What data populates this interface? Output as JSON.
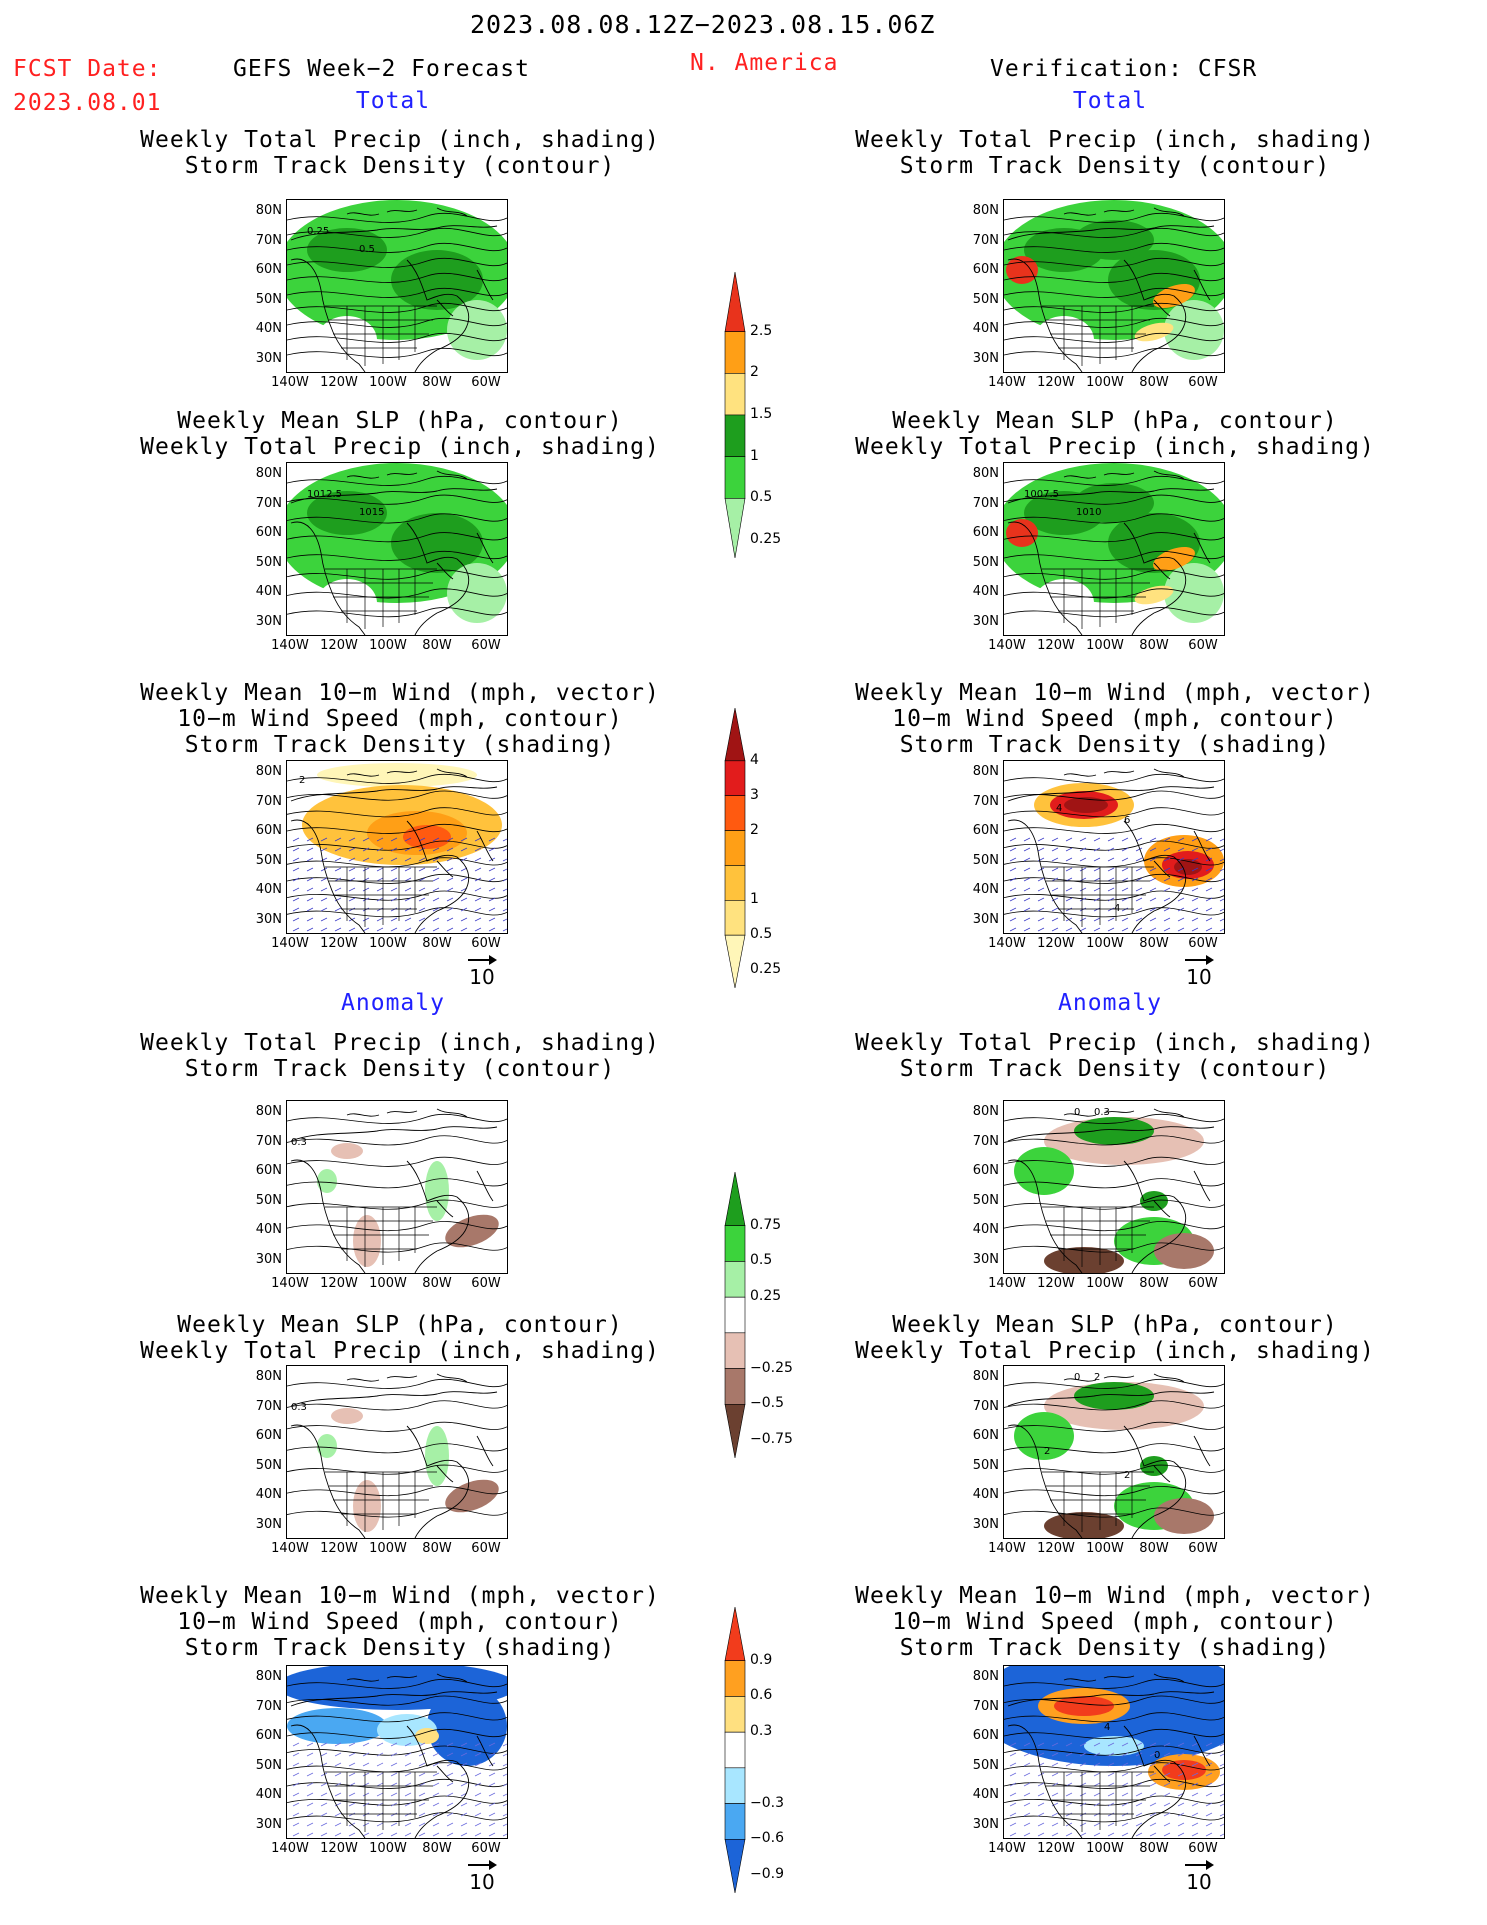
{
  "header": {
    "date_range": "2023.08.08.12Z−2023.08.15.06Z",
    "fcst_label": "FCST Date:",
    "fcst_date": "2023.08.01",
    "model_title": "GEFS Week−2 Forecast",
    "region": "N. America",
    "verification": "Verification: CFSR"
  },
  "sections": {
    "total": "Total",
    "anomaly": "Anomaly"
  },
  "panel_titles": {
    "precip_storm": [
      "Weekly Total Precip (inch, shading)",
      "Storm Track Density (contour)"
    ],
    "slp_precip": [
      "Weekly Mean SLP (hPa, contour)",
      "Weekly Total Precip (inch, shading)"
    ],
    "wind_storm": [
      "Weekly Mean 10−m Wind (mph, vector)",
      "10−m Wind Speed (mph, contour)",
      "Storm Track Density (shading)"
    ]
  },
  "axes": {
    "lat_ticks": [
      "80N",
      "70N",
      "60N",
      "50N",
      "40N",
      "30N"
    ],
    "lon_ticks": [
      "140W",
      "120W",
      "100W",
      "80W",
      "60W"
    ]
  },
  "vector_ref": "10",
  "contour_labels": {
    "fc_total_precip": [
      "0.25",
      "0.5"
    ],
    "fc_total_slp": [
      "1012.5",
      "1015"
    ],
    "an_total_slp": [
      "1007.5",
      "1010"
    ],
    "fc_total_wind": [
      "2"
    ],
    "an_total_wind": [
      "4",
      "6",
      "4"
    ],
    "fc_anom_precip": [
      "0.3"
    ],
    "an_anom_precip": [
      "0",
      "0.3"
    ],
    "an_anom_slp": [
      "0",
      "2",
      "2",
      "2"
    ],
    "an_anom_wind": [
      "4",
      "0"
    ]
  },
  "colorbars": {
    "total_precip": {
      "labels": [
        "2.5",
        "2",
        "1.5",
        "1",
        "0.5",
        "0.25"
      ],
      "colors": [
        "#e8331c",
        "#ff9f16",
        "#ffe27f",
        "#1e9e1e",
        "#3cd33c",
        "#a6f0a6"
      ]
    },
    "total_storm": {
      "labels": [
        "4",
        "3",
        "2",
        "1",
        "0.5",
        "0.25"
      ],
      "colors": [
        "#a01414",
        "#e21c1c",
        "#ff5a10",
        "#ff9f16",
        "#ffc23c",
        "#ffe27f",
        "#fff6b8"
      ]
    },
    "anom_precip": {
      "labels": [
        "0.75",
        "0.5",
        "0.25",
        "−0.25",
        "−0.5",
        "−0.75"
      ],
      "colors": [
        "#1e9e1e",
        "#3cd33c",
        "#a6f0a6",
        "#ffffff",
        "#e6c0b4",
        "#a8786a",
        "#6b4030"
      ]
    },
    "anom_storm": {
      "labels": [
        "0.9",
        "0.6",
        "0.3",
        "−0.3",
        "−0.6",
        "−0.9"
      ],
      "colors": [
        "#f23c1c",
        "#ffa020",
        "#ffe080",
        "#ffffff",
        "#a8e6ff",
        "#4aa8f2",
        "#1c64d8"
      ]
    }
  }
}
